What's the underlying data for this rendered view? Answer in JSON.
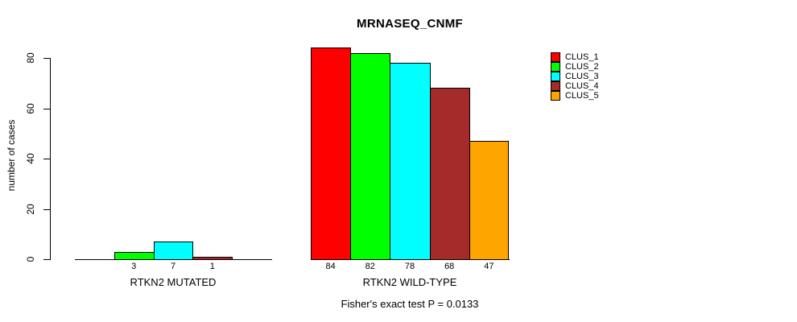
{
  "chart_data": {
    "type": "bar",
    "title": "MRNASEQ_CNMF",
    "ylabel": "number of cases",
    "xlabel": "",
    "ylim": [
      0,
      80
    ],
    "yticks": [
      0,
      20,
      40,
      60,
      80
    ],
    "grid": false,
    "legend_position": "right",
    "series_colors": [
      "#FF0000",
      "#00FF00",
      "#00FFFF",
      "#A52A2A",
      "#FFA500"
    ],
    "legend": [
      {
        "label": "CLUS_1",
        "color": "#FF0000"
      },
      {
        "label": "CLUS_2",
        "color": "#00FF00"
      },
      {
        "label": "CLUS_3",
        "color": "#00FFFF"
      },
      {
        "label": "CLUS_4",
        "color": "#A52A2A"
      },
      {
        "label": "CLUS_5",
        "color": "#FFA500"
      }
    ],
    "groups": [
      {
        "label": "RTKN2 MUTATED",
        "values": [
          0,
          3,
          7,
          1,
          0
        ],
        "bar_labels": [
          "",
          "3",
          "7",
          "1",
          ""
        ]
      },
      {
        "label": "RTKN2 WILD-TYPE",
        "values": [
          84,
          82,
          78,
          68,
          47
        ],
        "bar_labels": [
          "84",
          "82",
          "78",
          "68",
          "47"
        ]
      }
    ],
    "caption": "Fisher's exact test P = 0.0133",
    "axis_color": "#000000",
    "background_color": "#ffffff"
  }
}
